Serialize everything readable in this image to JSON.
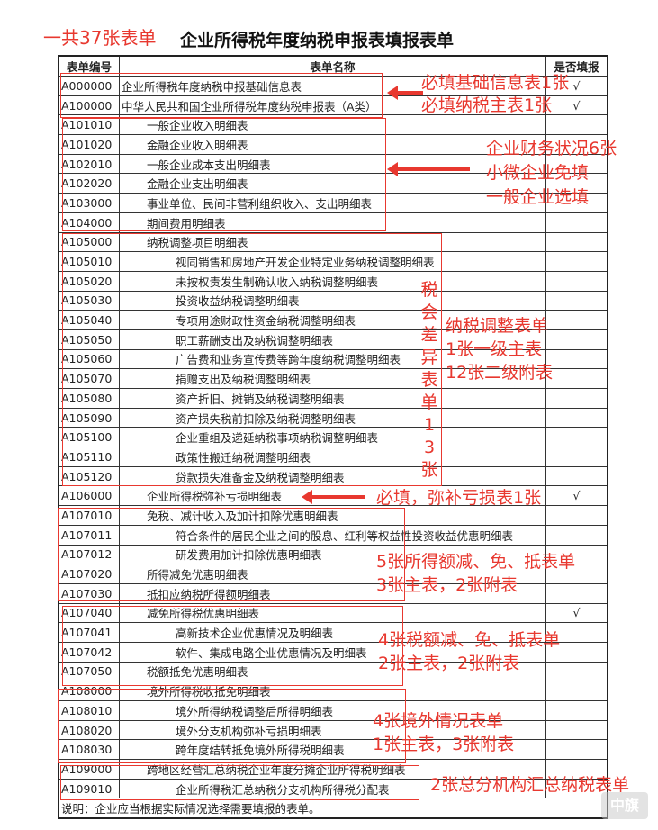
{
  "annotation_total": "一共37张表单",
  "title": "企业所得税年度纳税申报表填报表单",
  "table": {
    "headers": [
      "表单编号",
      "表单名称",
      "是否填报"
    ],
    "rows": [
      {
        "code": "A000000",
        "name": "企业所得税年度纳税申报基础信息表",
        "level": 0,
        "check": "√"
      },
      {
        "code": "A100000",
        "name": "中华人民共和国企业所得税年度纳税申报表（A类）",
        "level": 0,
        "check": "√"
      },
      {
        "code": "A101010",
        "name": "一般企业收入明细表",
        "level": 1,
        "check": ""
      },
      {
        "code": "A101020",
        "name": "金融企业收入明细表",
        "level": 1,
        "check": ""
      },
      {
        "code": "A102010",
        "name": "一般企业成本支出明细表",
        "level": 1,
        "check": ""
      },
      {
        "code": "A102020",
        "name": "金融企业支出明细表",
        "level": 1,
        "check": ""
      },
      {
        "code": "A103000",
        "name": "事业单位、民间非营利组织收入、支出明细表",
        "level": 1,
        "check": ""
      },
      {
        "code": "A104000",
        "name": "期间费用明细表",
        "level": 1,
        "check": ""
      },
      {
        "code": "A105000",
        "name": "纳税调整项目明细表",
        "level": 1,
        "check": ""
      },
      {
        "code": "A105010",
        "name": "视同销售和房地产开发企业特定业务纳税调整明细表",
        "level": 2,
        "check": ""
      },
      {
        "code": "A105020",
        "name": "未按权责发生制确认收入纳税调整明细表",
        "level": 2,
        "check": ""
      },
      {
        "code": "A105030",
        "name": "投资收益纳税调整明细表",
        "level": 2,
        "check": ""
      },
      {
        "code": "A105040",
        "name": "专项用途财政性资金纳税调整明细表",
        "level": 2,
        "check": ""
      },
      {
        "code": "A105050",
        "name": "职工薪酬支出及纳税调整明细表",
        "level": 2,
        "check": ""
      },
      {
        "code": "A105060",
        "name": "广告费和业务宣传费等跨年度纳税调整明细表",
        "level": 2,
        "check": ""
      },
      {
        "code": "A105070",
        "name": "捐赠支出及纳税调整明细表",
        "level": 2,
        "check": ""
      },
      {
        "code": "A105080",
        "name": "资产折旧、摊销及纳税调整明细表",
        "level": 2,
        "check": ""
      },
      {
        "code": "A105090",
        "name": "资产损失税前扣除及纳税调整明细表",
        "level": 2,
        "check": ""
      },
      {
        "code": "A105100",
        "name": "企业重组及递延纳税事项纳税调整明细表",
        "level": 2,
        "check": ""
      },
      {
        "code": "A105110",
        "name": "政策性搬迁纳税调整明细表",
        "level": 2,
        "check": ""
      },
      {
        "code": "A105120",
        "name": "贷款损失准备金及纳税调整明细表",
        "level": 2,
        "check": ""
      },
      {
        "code": "A106000",
        "name": "企业所得税弥补亏损明细表",
        "level": 1,
        "check": "√"
      },
      {
        "code": "A107010",
        "name": "免税、减计收入及加计扣除优惠明细表",
        "level": 1,
        "check": ""
      },
      {
        "code": "A107011",
        "name": "符合条件的居民企业之间的股息、红利等权益性投资收益优惠明细表",
        "level": 2,
        "check": ""
      },
      {
        "code": "A107012",
        "name": "研发费用加计扣除优惠明细表",
        "level": 2,
        "check": ""
      },
      {
        "code": "A107020",
        "name": "所得减免优惠明细表",
        "level": 1,
        "check": ""
      },
      {
        "code": "A107030",
        "name": "抵扣应纳税所得额明细表",
        "level": 1,
        "check": ""
      },
      {
        "code": "A107040",
        "name": "减免所得税优惠明细表",
        "level": 1,
        "check": "√"
      },
      {
        "code": "A107041",
        "name": "高新技术企业优惠情况及明细表",
        "level": 2,
        "check": ""
      },
      {
        "code": "A107042",
        "name": "软件、集成电路企业优惠情况及明细表",
        "level": 2,
        "check": ""
      },
      {
        "code": "A107050",
        "name": "税额抵免优惠明细表",
        "level": 1,
        "check": ""
      },
      {
        "code": "A108000",
        "name": "境外所得税收抵免明细表",
        "level": 1,
        "check": ""
      },
      {
        "code": "A108010",
        "name": "境外所得纳税调整后所得明细表",
        "level": 2,
        "check": ""
      },
      {
        "code": "A108020",
        "name": "境外分支机构弥补亏损明细表",
        "level": 2,
        "check": ""
      },
      {
        "code": "A108030",
        "name": "跨年度结转抵免境外所得税明细表",
        "level": 2,
        "check": ""
      },
      {
        "code": "A109000",
        "name": "跨地区经营汇总纳税企业年度分摊企业所得税明细表",
        "level": 1,
        "check": ""
      },
      {
        "code": "A109010",
        "name": "企业所得税汇总纳税分支机构所得税分配表",
        "level": 2,
        "check": ""
      }
    ],
    "note": "说明：企业应当根据实际情况选择需要填报的表单。"
  },
  "annotations": {
    "basic_info": "必填基础信息表1张",
    "main_form": "必填纳税主表1张",
    "finance_1": "企业财务状况6张",
    "finance_2": "小微企业免填",
    "finance_3": "一般企业选填",
    "diff_vertical": "税会差异表单13张",
    "adjust_1": "纳税调整表单",
    "adjust_2": "1张一级主表",
    "adjust_3": "12张二级附表",
    "loss": "必填，弥补亏损表1张",
    "income_1": "5张所得额减、免、抵表单",
    "income_2": "3张主表，2张附表",
    "taxamt_1": "4张税额减、免、抵表单",
    "taxamt_2": "2张主表，2张附表",
    "foreign_1": "4张境外情况表单",
    "foreign_2": "1张主表，3张附表",
    "branch": "2张总分机构汇总纳税表单"
  },
  "watermark": "中旗",
  "colors": {
    "annotation": "#e8382f"
  }
}
